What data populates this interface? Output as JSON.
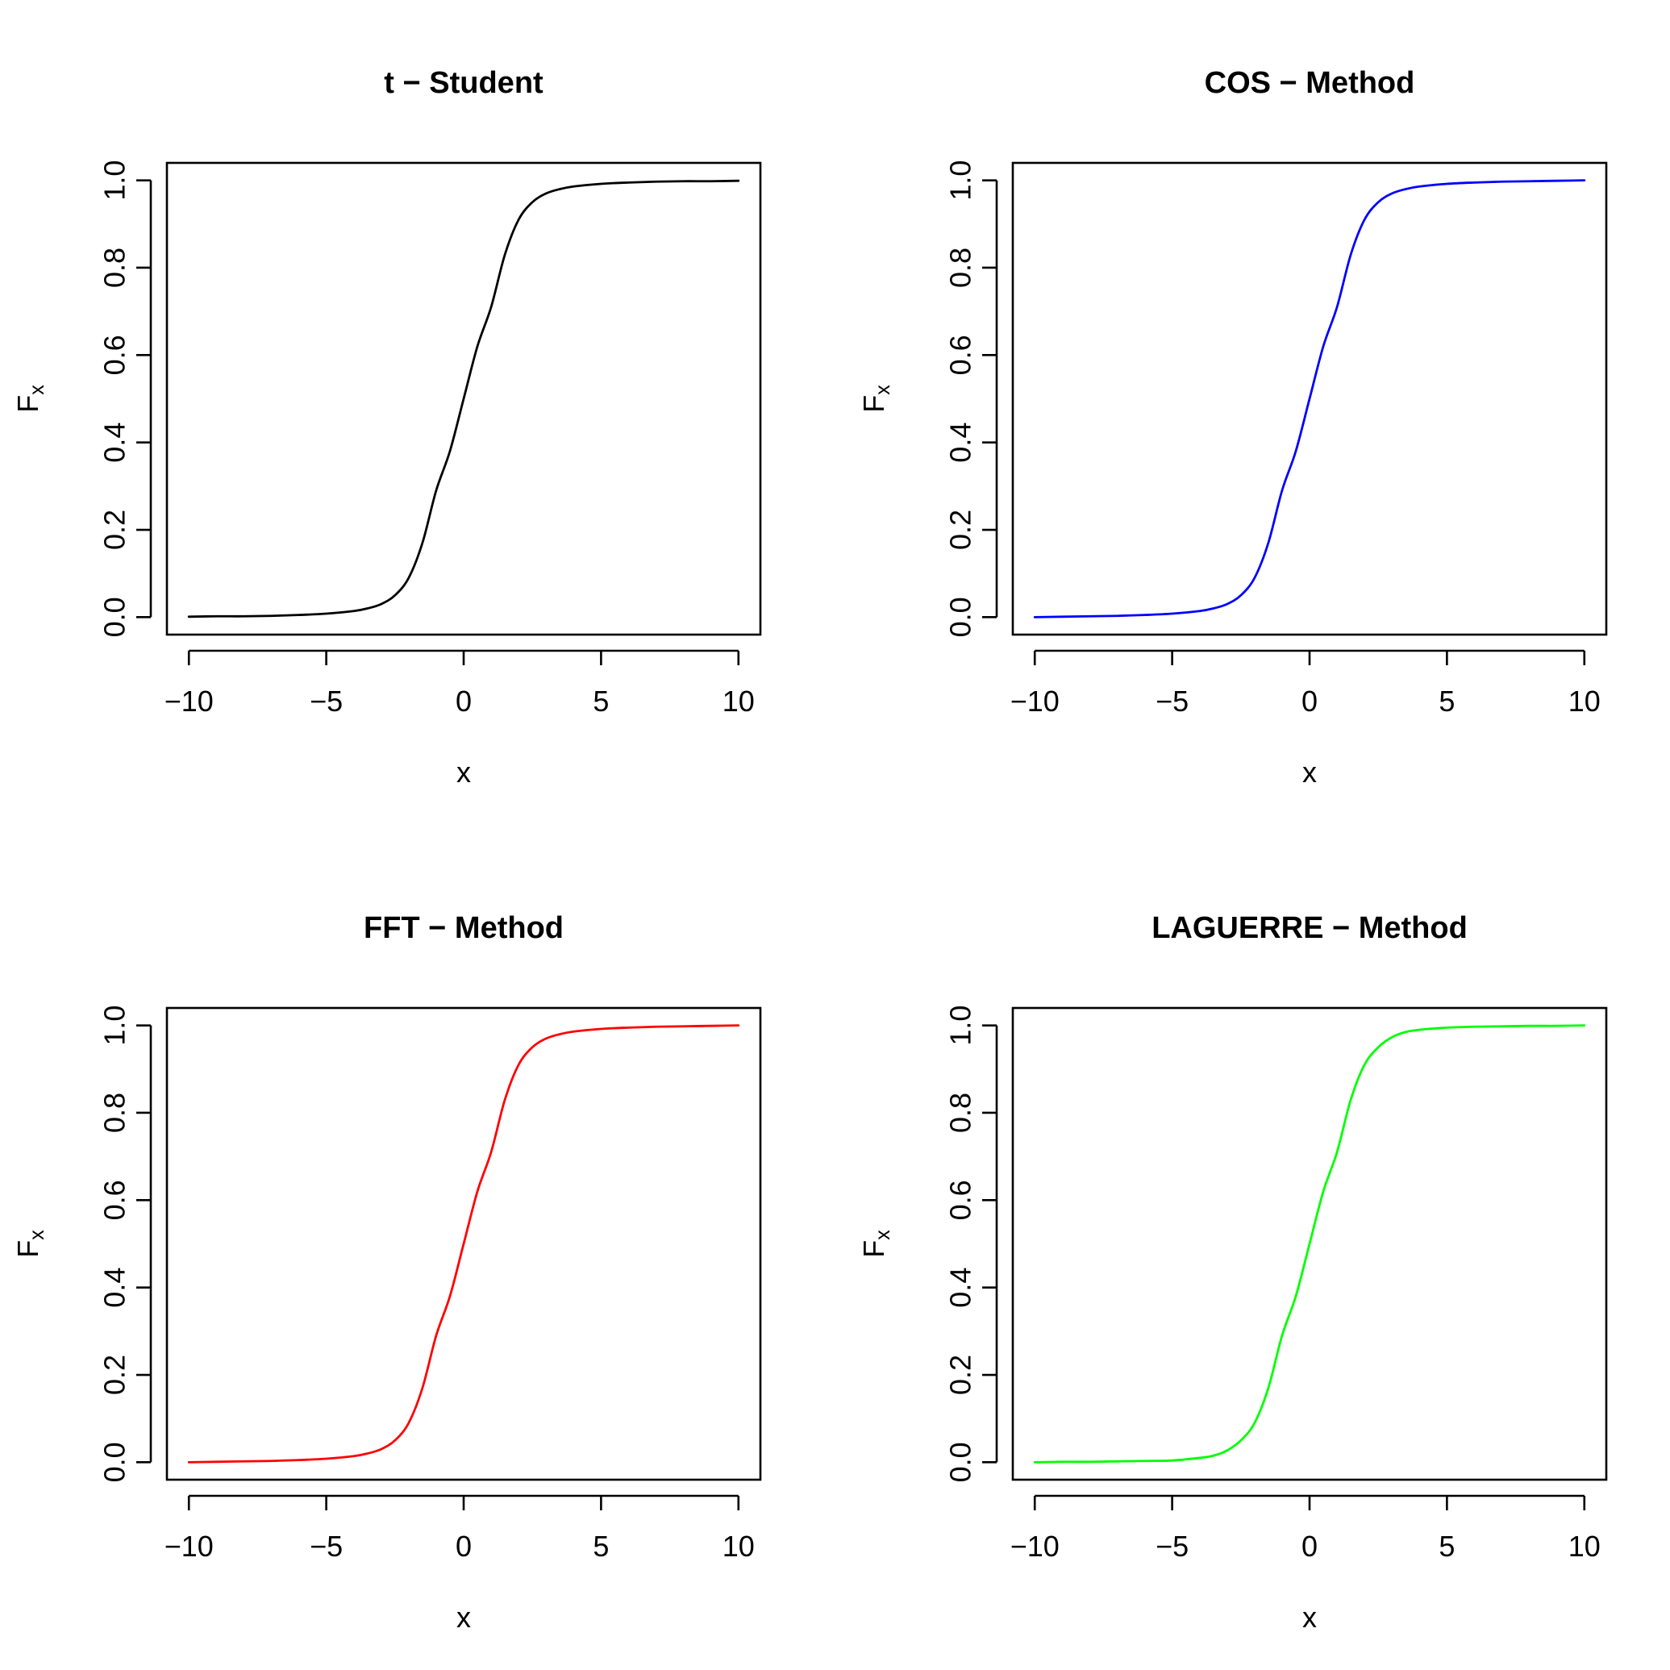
{
  "chart_data": [
    {
      "type": "line",
      "title": "t − Student",
      "xlabel": "x",
      "ylabel": {
        "main": "F",
        "sub": "x"
      },
      "xlim": [
        -10,
        10
      ],
      "ylim": [
        0,
        1
      ],
      "xticks": [
        -10,
        -5,
        0,
        5,
        10
      ],
      "xtick_labels": [
        "−10",
        "−5",
        "0",
        "5",
        "10"
      ],
      "yticks": [
        0,
        0.2,
        0.4,
        0.6,
        0.8,
        1
      ],
      "ytick_labels": [
        "0.0",
        "0.2",
        "0.4",
        "0.6",
        "0.8",
        "1.0"
      ],
      "grid": false,
      "color": "#000000",
      "series": [
        {
          "x": [
            -10,
            -9,
            -8,
            -7,
            -6,
            -5,
            -4,
            -3.5,
            -3,
            -2.5,
            -2,
            -1.5,
            -1,
            -0.5,
            0,
            0.5,
            1,
            1.5,
            2,
            2.5,
            3,
            3.5,
            4,
            5,
            6,
            7,
            8,
            9,
            10
          ],
          "y": [
            0.001,
            0.002,
            0.002,
            0.003,
            0.005,
            0.008,
            0.014,
            0.02,
            0.03,
            0.05,
            0.09,
            0.17,
            0.29,
            0.38,
            0.5,
            0.62,
            0.71,
            0.83,
            0.91,
            0.95,
            0.97,
            0.98,
            0.986,
            0.992,
            0.995,
            0.997,
            0.998,
            0.998,
            0.999
          ]
        }
      ]
    },
    {
      "type": "line",
      "title": "COS − Method",
      "xlabel": "x",
      "ylabel": {
        "main": "F",
        "sub": "x"
      },
      "xlim": [
        -10,
        10
      ],
      "ylim": [
        0,
        1
      ],
      "xticks": [
        -10,
        -5,
        0,
        5,
        10
      ],
      "xtick_labels": [
        "−10",
        "−5",
        "0",
        "5",
        "10"
      ],
      "yticks": [
        0,
        0.2,
        0.4,
        0.6,
        0.8,
        1
      ],
      "ytick_labels": [
        "0.0",
        "0.2",
        "0.4",
        "0.6",
        "0.8",
        "1.0"
      ],
      "grid": false,
      "color": "#0000ff",
      "series": [
        {
          "x": [
            -10,
            -9,
            -8,
            -7,
            -6,
            -5,
            -4,
            -3.5,
            -3,
            -2.5,
            -2,
            -1.5,
            -1,
            -0.5,
            0,
            0.5,
            1,
            1.5,
            2,
            2.5,
            3,
            3.5,
            4,
            5,
            6,
            7,
            8,
            9,
            10
          ],
          "y": [
            0,
            0.001,
            0.002,
            0.003,
            0.005,
            0.008,
            0.014,
            0.02,
            0.03,
            0.05,
            0.09,
            0.17,
            0.29,
            0.38,
            0.5,
            0.62,
            0.71,
            0.83,
            0.91,
            0.95,
            0.97,
            0.98,
            0.986,
            0.992,
            0.995,
            0.997,
            0.998,
            0.999,
            1
          ]
        }
      ]
    },
    {
      "type": "line",
      "title": "FFT − Method",
      "xlabel": "x",
      "ylabel": {
        "main": "F",
        "sub": "x"
      },
      "xlim": [
        -10,
        10
      ],
      "ylim": [
        0,
        1
      ],
      "xticks": [
        -10,
        -5,
        0,
        5,
        10
      ],
      "xtick_labels": [
        "−10",
        "−5",
        "0",
        "5",
        "10"
      ],
      "yticks": [
        0,
        0.2,
        0.4,
        0.6,
        0.8,
        1
      ],
      "ytick_labels": [
        "0.0",
        "0.2",
        "0.4",
        "0.6",
        "0.8",
        "1.0"
      ],
      "grid": false,
      "color": "#ff0000",
      "series": [
        {
          "x": [
            -10,
            -9,
            -8,
            -7,
            -6,
            -5,
            -4,
            -3.5,
            -3,
            -2.5,
            -2,
            -1.5,
            -1,
            -0.5,
            0,
            0.5,
            1,
            1.5,
            2,
            2.5,
            3,
            3.5,
            4,
            5,
            6,
            7,
            8,
            9,
            10
          ],
          "y": [
            0,
            0.001,
            0.002,
            0.003,
            0.005,
            0.008,
            0.014,
            0.02,
            0.03,
            0.05,
            0.09,
            0.17,
            0.29,
            0.38,
            0.5,
            0.62,
            0.71,
            0.83,
            0.91,
            0.95,
            0.97,
            0.98,
            0.986,
            0.992,
            0.995,
            0.997,
            0.998,
            0.999,
            1
          ]
        }
      ]
    },
    {
      "type": "line",
      "title": "LAGUERRE − Method",
      "xlabel": "x",
      "ylabel": {
        "main": "F",
        "sub": "x"
      },
      "xlim": [
        -10,
        10
      ],
      "ylim": [
        0,
        1
      ],
      "xticks": [
        -10,
        -5,
        0,
        5,
        10
      ],
      "xtick_labels": [
        "−10",
        "−5",
        "0",
        "5",
        "10"
      ],
      "yticks": [
        0,
        0.2,
        0.4,
        0.6,
        0.8,
        1
      ],
      "ytick_labels": [
        "0.0",
        "0.2",
        "0.4",
        "0.6",
        "0.8",
        "1.0"
      ],
      "grid": false,
      "color": "#00ff00",
      "series": [
        {
          "x": [
            -10,
            -9,
            -8,
            -7,
            -6,
            -5,
            -4,
            -3.5,
            -3,
            -2.5,
            -2,
            -1.5,
            -1,
            -0.5,
            0,
            0.5,
            1,
            1.5,
            2,
            2.5,
            3,
            3.5,
            4,
            5,
            6,
            7,
            8,
            9,
            10
          ],
          "y": [
            0,
            0.001,
            0.001,
            0.002,
            0.003,
            0.004,
            0.01,
            0.015,
            0.027,
            0.05,
            0.09,
            0.17,
            0.29,
            0.38,
            0.5,
            0.62,
            0.71,
            0.83,
            0.91,
            0.95,
            0.973,
            0.985,
            0.99,
            0.995,
            0.997,
            0.998,
            0.999,
            0.999,
            1
          ]
        }
      ]
    }
  ]
}
